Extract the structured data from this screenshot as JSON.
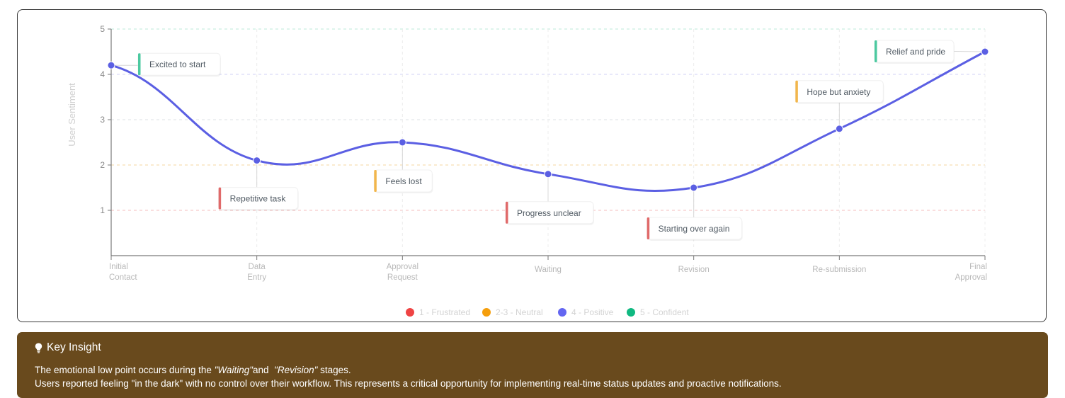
{
  "chart_data": {
    "type": "line",
    "ylabel": "User Sentiment",
    "ylim": [
      0,
      5
    ],
    "yticks": [
      "1",
      "2",
      "3",
      "4",
      "5"
    ],
    "categories": [
      [
        "Initial",
        "Contact"
      ],
      [
        "Data",
        "Entry"
      ],
      [
        "Approval",
        "Request"
      ],
      [
        "Waiting"
      ],
      [
        "Revision"
      ],
      [
        "Re-submission"
      ],
      [
        "Final",
        "Approval"
      ]
    ],
    "values": [
      4.2,
      2.1,
      2.5,
      1.8,
      1.5,
      2.8,
      4.5
    ],
    "line_color": "#5b5fe3",
    "grid": true,
    "annotations": [
      {
        "text": "Excited to start",
        "color": "#4cc9a0"
      },
      {
        "text": "Repetitive task",
        "color": "#e06a6a"
      },
      {
        "text": "Feels lost",
        "color": "#f2b64b"
      },
      {
        "text": "Progress unclear",
        "color": "#e06a6a"
      },
      {
        "text": "Starting over again",
        "color": "#e06a6a"
      },
      {
        "text": "Hope but anxiety",
        "color": "#f2b64b"
      },
      {
        "text": "Relief and pride",
        "color": "#4cc9a0"
      }
    ],
    "legend": {
      "placement": "bottom-center",
      "items": [
        {
          "label": "1 - Frustrated",
          "color": "#ef4444"
        },
        {
          "label": "2-3 - Neutral",
          "color": "#f59e0b"
        },
        {
          "label": "4 - Positive",
          "color": "#6366f1"
        },
        {
          "label": "5 - Confident",
          "color": "#10b981"
        }
      ]
    }
  },
  "insight": {
    "title": "Key Insight",
    "line1_pre": "The emotional low point occurs during the ",
    "quote1": "\"Waiting\"",
    "line1_mid": "and  ",
    "quote2": "\"Revision\"",
    "line1_post": " stages.",
    "line2": "Users reported feeling \"in the dark\" with no control over their workflow. This represents a critical opportunity for implementing real-time status updates and proactive notifications."
  }
}
